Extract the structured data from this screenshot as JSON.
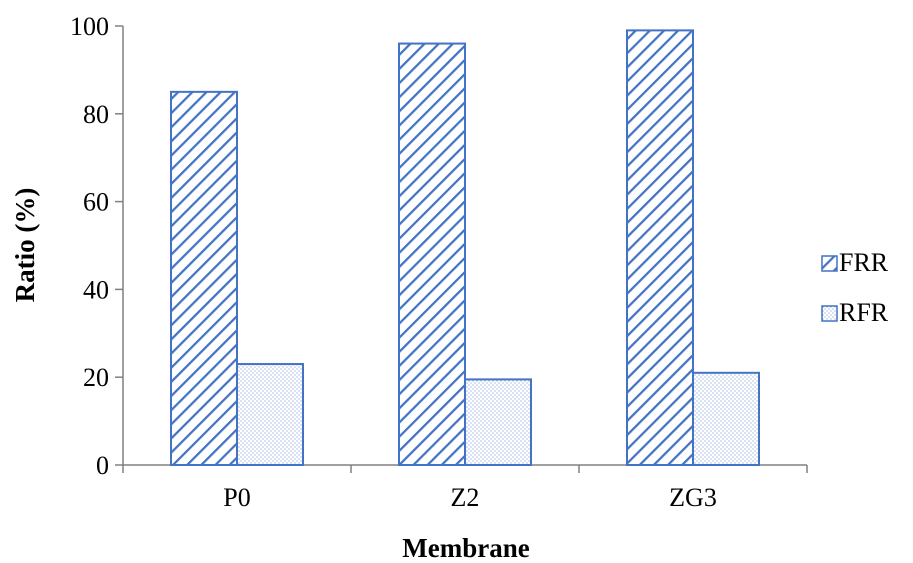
{
  "chart_data": {
    "type": "bar",
    "categories": [
      "P0",
      "Z2",
      "ZG3"
    ],
    "series": [
      {
        "name": "FRR",
        "values": [
          85,
          96,
          99
        ],
        "pattern": "diagonal-hatch"
      },
      {
        "name": "RFR",
        "values": [
          23,
          19.5,
          21
        ],
        "pattern": "dotted"
      }
    ],
    "xlabel": "Membrane",
    "ylabel": "Ratio (%)",
    "ylim": [
      0,
      100
    ],
    "yticks": [
      "0",
      "20",
      "40",
      "60",
      "80",
      "100"
    ],
    "grid": false,
    "legend_position": "right",
    "colors": {
      "bar_border": "#4472c4",
      "hatch": "#4472c4",
      "dots": "#4472c4",
      "axis": "#808080"
    }
  }
}
